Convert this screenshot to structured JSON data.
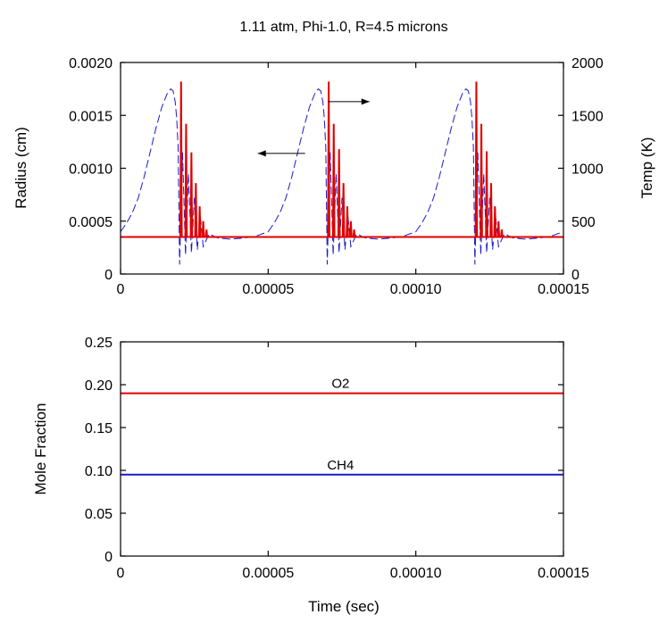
{
  "chart_data": [
    {
      "type": "line",
      "title": "1.11 atm, Phi-1.0, R=4.5 microns",
      "xlabel": "",
      "ylabel": "Radius (cm)",
      "y2label": "Temp (K)",
      "xlim": [
        0,
        0.00015
      ],
      "ylim": [
        0,
        0.002
      ],
      "y2lim": [
        0,
        2000
      ],
      "x_ticks": [
        "0",
        "0.00005",
        "0.00010",
        "0.00015"
      ],
      "y_ticks": [
        "0",
        "0.0005",
        "0.0010",
        "0.0015",
        "0.0020"
      ],
      "y2_ticks": [
        "0",
        "500",
        "1000",
        "1500",
        "2000"
      ],
      "grid": false,
      "series": [
        {
          "axis": "left",
          "color": "#1a1acc",
          "style": "dashed",
          "cycles_start": [
            0,
            5e-05,
            0.0001
          ],
          "x": [
            0,
            1e-06,
            2e-06,
            4e-06,
            6e-06,
            8e-06,
            1e-05,
            1.2e-05,
            1.4e-05,
            1.6e-05,
            1.7e-05,
            1.78e-05,
            1.85e-05,
            1.9e-05,
            1.95e-05,
            2e-05,
            2.1e-05,
            2.2e-05,
            2.3e-05,
            2.4e-05,
            2.5e-05,
            2.6e-05,
            2.7e-05,
            2.8e-05,
            3e-05,
            3.3e-05,
            3.7e-05,
            4.2e-05,
            4.6e-05,
            5e-05
          ],
          "y": [
            0.0004,
            0.00044,
            0.00048,
            0.00058,
            0.00072,
            0.00092,
            0.00115,
            0.00138,
            0.00158,
            0.00172,
            0.00175,
            0.00173,
            0.00163,
            0.00148,
            0.0012,
            9e-05,
            0.00115,
            0.00018,
            0.00095,
            0.0002,
            0.00072,
            0.00023,
            0.00055,
            0.00026,
            0.00038,
            0.00034,
            0.00033,
            0.00034,
            0.00036,
            0.0004
          ]
        },
        {
          "axis": "right",
          "color": "#e00000",
          "style": "solid",
          "baseline": 350,
          "spikes": [
            {
              "x": 2.05e-05,
              "y": 1820
            },
            {
              "x": 2.22e-05,
              "y": 1420
            },
            {
              "x": 2.4e-05,
              "y": 1150
            },
            {
              "x": 2.55e-05,
              "y": 860
            },
            {
              "x": 2.68e-05,
              "y": 640
            },
            {
              "x": 2.8e-05,
              "y": 500
            },
            {
              "x": 2.91e-05,
              "y": 420
            },
            {
              "x": 7.05e-05,
              "y": 1820
            },
            {
              "x": 7.22e-05,
              "y": 1420
            },
            {
              "x": 7.4e-05,
              "y": 1180
            },
            {
              "x": 7.55e-05,
              "y": 860
            },
            {
              "x": 7.68e-05,
              "y": 640
            },
            {
              "x": 7.8e-05,
              "y": 500
            },
            {
              "x": 7.91e-05,
              "y": 420
            },
            {
              "x": 0.0001205,
              "y": 1820
            },
            {
              "x": 0.0001222,
              "y": 1420
            },
            {
              "x": 0.000124,
              "y": 1160
            },
            {
              "x": 0.0001255,
              "y": 860
            },
            {
              "x": 0.0001268,
              "y": 640
            },
            {
              "x": 0.000128,
              "y": 500
            },
            {
              "x": 0.0001291,
              "y": 420
            }
          ]
        }
      ],
      "annotations": [
        {
          "type": "arrow",
          "direction": "left",
          "x_from": 6.25e-05,
          "x_to": 4.65e-05,
          "y": 0.00114
        },
        {
          "type": "arrow",
          "direction": "right",
          "x_from": 7.02e-05,
          "x_to": 8.43e-05,
          "y": 0.00163
        }
      ]
    },
    {
      "type": "line",
      "title": "",
      "xlabel": "Time (sec)",
      "ylabel": "Mole Fraction",
      "xlim": [
        0,
        0.00015
      ],
      "ylim": [
        0,
        0.25
      ],
      "x_ticks": [
        "0",
        "0.00005",
        "0.00010",
        "0.00015"
      ],
      "y_ticks": [
        "0",
        "0.05",
        "0.10",
        "0.15",
        "0.20",
        "0.25"
      ],
      "grid": false,
      "series": [
        {
          "name": "O2",
          "color": "#e00000",
          "x": [
            0,
            0.00015
          ],
          "y": [
            0.19,
            0.19
          ]
        },
        {
          "name": "CH4",
          "color": "#1a1acc",
          "x": [
            0,
            0.00015
          ],
          "y": [
            0.095,
            0.095
          ]
        }
      ]
    }
  ]
}
